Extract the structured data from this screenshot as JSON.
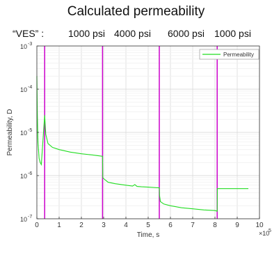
{
  "chart_data": {
    "type": "line",
    "title": "Calculated permeability",
    "annotation": {
      "prefix": "“VES” : ",
      "labels": [
        "1000 psi",
        "4000 psi",
        "6000 psi",
        "1000 psi"
      ]
    },
    "xlabel": "Time, s",
    "ylabel": "Permeability, D",
    "x_multiplier_label": "×10",
    "x_multiplier_exp": "5",
    "xlim": [
      0,
      10
    ],
    "ylog": true,
    "ylim": [
      1e-07,
      0.001
    ],
    "x_ticks": [
      "0",
      "1",
      "2",
      "3",
      "4",
      "5",
      "6",
      "7",
      "8",
      "9",
      "10"
    ],
    "y_ticks": [
      {
        "base": "10",
        "exp": "-3"
      },
      {
        "base": "10",
        "exp": "-4"
      },
      {
        "base": "10",
        "exp": "-5"
      },
      {
        "base": "10",
        "exp": "-6"
      },
      {
        "base": "10",
        "exp": "-7"
      }
    ],
    "grid": true,
    "legend_position": "top-right",
    "series": [
      {
        "name": "Permeability",
        "color": "#22dd22",
        "x": [
          0.0,
          0.02,
          0.05,
          0.1,
          0.15,
          0.2,
          0.35,
          0.4,
          0.5,
          0.7,
          1.0,
          1.5,
          2.0,
          2.5,
          2.95,
          2.96,
          3.0,
          3.2,
          3.5,
          4.0,
          4.3,
          4.4,
          4.5,
          4.7,
          5.0,
          5.5,
          5.51,
          5.55,
          5.7,
          6.0,
          6.5,
          7.0,
          7.5,
          8.0,
          8.1,
          8.11,
          8.5,
          9.5
        ],
        "y": [
          0.0002,
          3e-05,
          6e-06,
          2.5e-06,
          2e-06,
          1.8e-06,
          2.5e-05,
          9e-06,
          5.5e-06,
          4.5e-06,
          4e-06,
          3.5e-06,
          3.2e-06,
          3e-06,
          2.8e-06,
          9e-07,
          8.5e-07,
          7e-07,
          6.5e-07,
          6e-07,
          5.7e-07,
          6.2e-07,
          5.6e-07,
          5.5e-07,
          5.4e-07,
          5.2e-07,
          3.5e-07,
          2.5e-07,
          2.2e-07,
          2e-07,
          1.8e-07,
          1.7e-07,
          1.6e-07,
          1.55e-07,
          1.5e-07,
          5e-07,
          5e-07,
          5e-07
        ]
      }
    ],
    "vertical_lines": {
      "color": "#cc00cc",
      "x": [
        0.35,
        2.95,
        5.5,
        8.1
      ]
    }
  }
}
